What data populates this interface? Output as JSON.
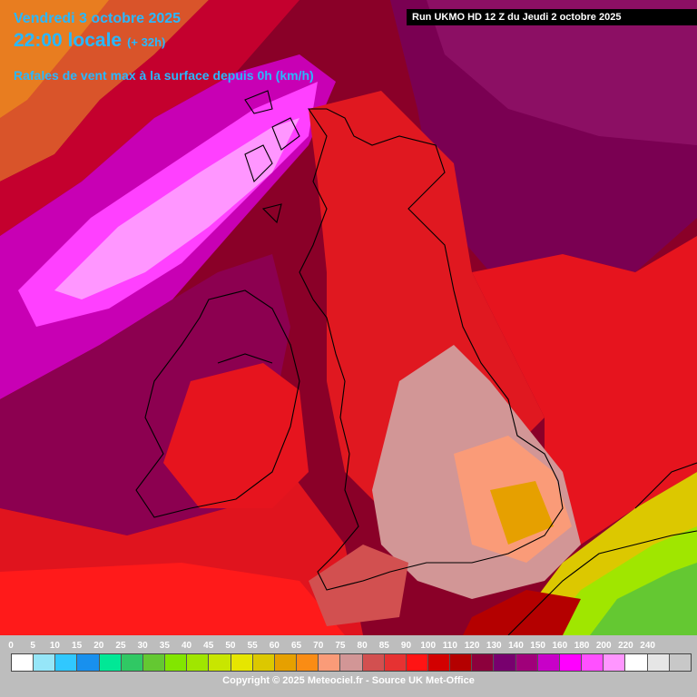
{
  "header": {
    "date": "Vendredi 3 octobre 2025",
    "time": "22:00 locale",
    "lead": "(+ 32h)",
    "parameter": "Rafales de vent max à la surface depuis 0h (km/h)",
    "run": "Run UKMO HD 12 Z du Jeudi 2 octobre 2025"
  },
  "legend": {
    "ticks": [
      "0",
      "5",
      "10",
      "15",
      "20",
      "25",
      "30",
      "35",
      "40",
      "45",
      "50",
      "55",
      "60",
      "65",
      "70",
      "75",
      "80",
      "85",
      "90",
      "100",
      "110",
      "120",
      "130",
      "140",
      "150",
      "160",
      "180",
      "200",
      "220",
      "240"
    ],
    "colors": [
      "#ffffff",
      "#96e6f8",
      "#30c8ff",
      "#1890ee",
      "#00e896",
      "#30c864",
      "#64c832",
      "#82e600",
      "#a0e600",
      "#c8e600",
      "#e6e600",
      "#dcc800",
      "#e6a000",
      "#fa8c14",
      "#fa9b78",
      "#d29696",
      "#d25050",
      "#e63232",
      "#ff1414",
      "#d20000",
      "#b40000",
      "#8c003c",
      "#78006e",
      "#a0007a",
      "#c800c8",
      "#ff00ff",
      "#ff50ff",
      "#ff96ff",
      "#ffffff",
      "#e6e6e6",
      "#c8c8c8"
    ],
    "copyright": "Copyright © 2025 Meteociel.fr - Source UK Met-Office"
  }
}
